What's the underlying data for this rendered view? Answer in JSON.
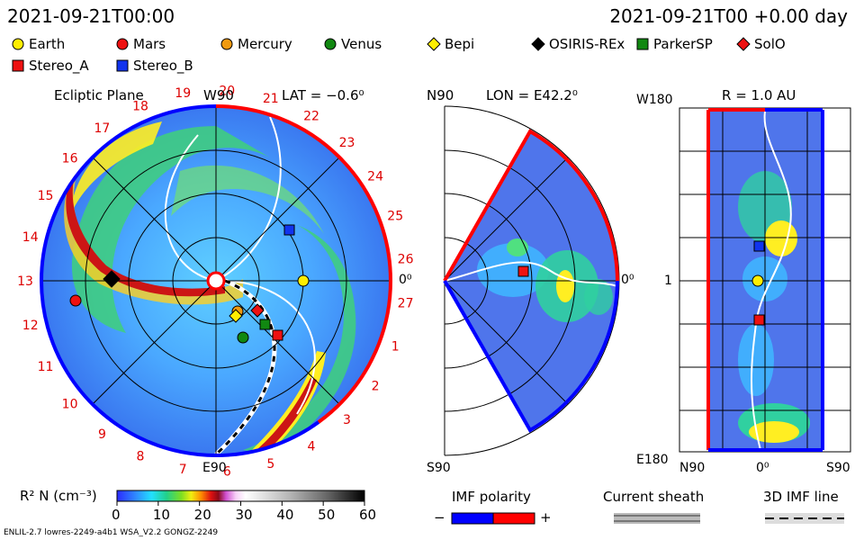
{
  "header": {
    "date_left": "2021-09-21T00:00",
    "date_right": "2021-09-21T00 +0.00 day"
  },
  "legend": [
    {
      "name": "Earth",
      "shape": "circle",
      "fill": "#ffee00"
    },
    {
      "name": "Mars",
      "shape": "circle",
      "fill": "#ee1111"
    },
    {
      "name": "Mercury",
      "shape": "circle",
      "fill": "#f09a10"
    },
    {
      "name": "Venus",
      "shape": "circle",
      "fill": "#118811"
    },
    {
      "name": "Bepi",
      "shape": "diamond",
      "fill": "#ffee00"
    },
    {
      "name": "OSIRIS-REx",
      "shape": "diamond",
      "fill": "#000000"
    },
    {
      "name": "ParkerSP",
      "shape": "square",
      "fill": "#118811"
    },
    {
      "name": "SolO",
      "shape": "diamond",
      "fill": "#ee1111"
    },
    {
      "name": "Stereo_A",
      "shape": "square",
      "fill": "#ee1111"
    },
    {
      "name": "Stereo_B",
      "shape": "square",
      "fill": "#1133ee"
    }
  ],
  "panels": {
    "ecliptic": {
      "title": "Ecliptic Plane",
      "top": "W90",
      "lat": "LAT = −0.6⁰",
      "right": "0⁰",
      "bottom": "E90"
    },
    "meridional": {
      "top_left": "N90",
      "lon": "LON = E42.2⁰",
      "right": "0⁰",
      "bottom_left": "S90"
    },
    "radial": {
      "r_label": "R = 1.0 AU",
      "top_left": "W180",
      "mid_left": "1",
      "bottom_left": "E180",
      "b_left": "N90",
      "b_mid": "0⁰",
      "b_right": "S90"
    }
  },
  "carrington_numbers": [
    "4",
    "5",
    "6",
    "7",
    "8",
    "9",
    "10",
    "11",
    "12",
    "13",
    "14",
    "15",
    "16",
    "17",
    "18",
    "19",
    "20",
    "21",
    "22",
    "23",
    "24",
    "25",
    "26",
    "27",
    "1",
    "2",
    "3"
  ],
  "colorbar": {
    "label": "R² N (cm⁻³)",
    "ticks": [
      "0",
      "10",
      "20",
      "30",
      "40",
      "50",
      "60"
    ]
  },
  "keys": {
    "imf_title": "IMF polarity",
    "imf_minus": "−",
    "imf_plus": "+",
    "sheath_title": "Current sheath",
    "imf3d_title": "3D IMF line"
  },
  "footer": {
    "text": "ENLIL-2.7 lowres-2249-a4b1 WSA_V2.2 GONGZ-2249"
  },
  "colors": {
    "positive_polarity": "#ff0000",
    "negative_polarity": "#0000ff"
  }
}
